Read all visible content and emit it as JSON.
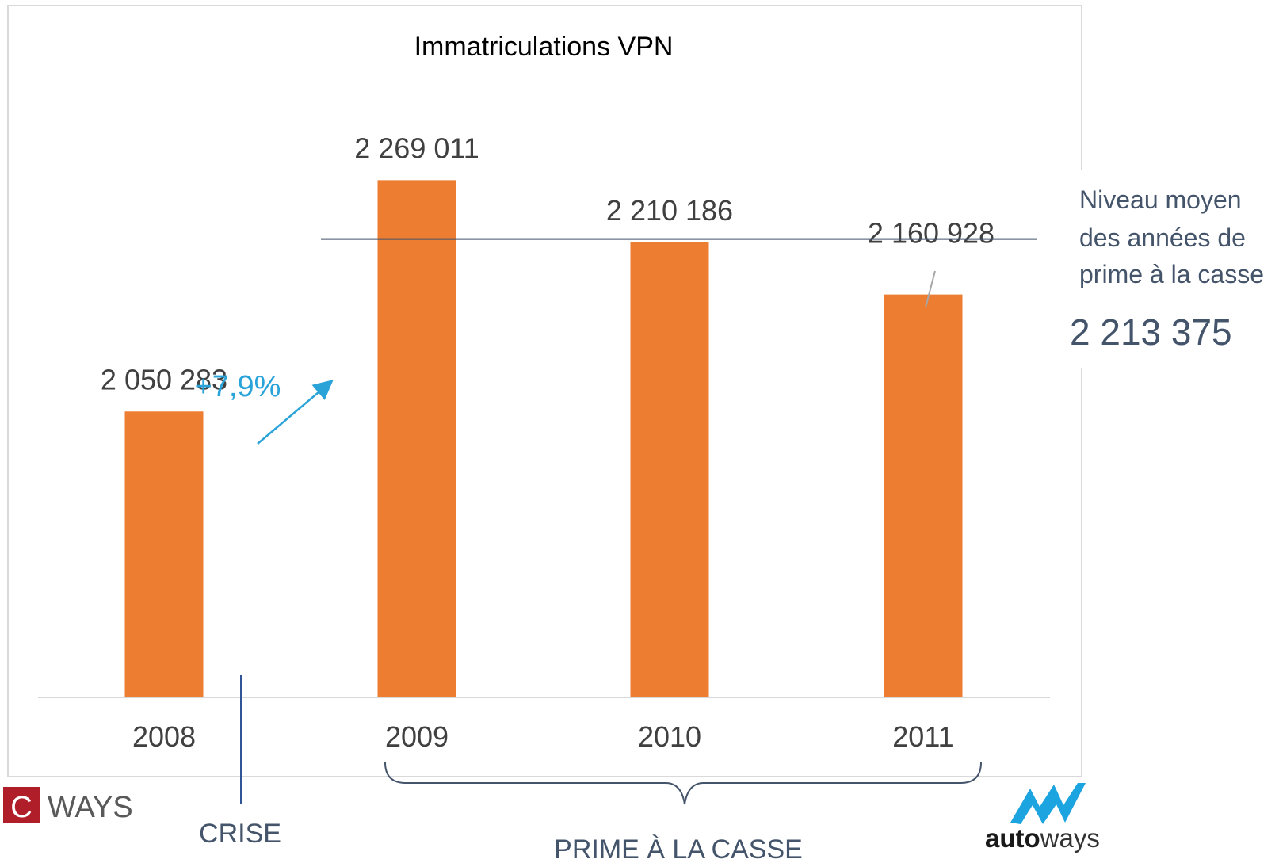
{
  "chart_data": {
    "type": "bar",
    "title": "Immatriculations VPN",
    "categories": [
      "2008",
      "2009",
      "2010",
      "2011"
    ],
    "values": [
      2050283,
      2269011,
      2210186,
      2160928
    ],
    "value_labels": [
      "2 050 283",
      "2 269 011",
      "2 210 186",
      "2 160 928"
    ],
    "xlabel": "",
    "ylabel": "",
    "ylim": [
      1780000,
      2300000
    ],
    "grid": false,
    "legend": "none",
    "bar_color": "#ED7D31",
    "reference_line": {
      "value": 2213375,
      "label_value": "2 213 375",
      "label_lines": [
        "Niveau moyen",
        "des années de",
        "prime à la casse"
      ],
      "color": "#44546A"
    },
    "growth_annotation": {
      "text": "+7,9%",
      "color": "#29A3D8"
    },
    "period_labels": {
      "crisis": "CRISE",
      "scrappage": "PRIME À LA CASSE"
    }
  },
  "logos": {
    "cways_letter": "C",
    "cways_word": "WAYS",
    "autoways_a": "auto",
    "autoways_b": "ways"
  },
  "colors": {
    "text": "#404040",
    "annotation_text": "#44546A",
    "axis": "#D9D9D9",
    "frame": "#D9D9D9",
    "logo_red": "#B01E2A"
  }
}
